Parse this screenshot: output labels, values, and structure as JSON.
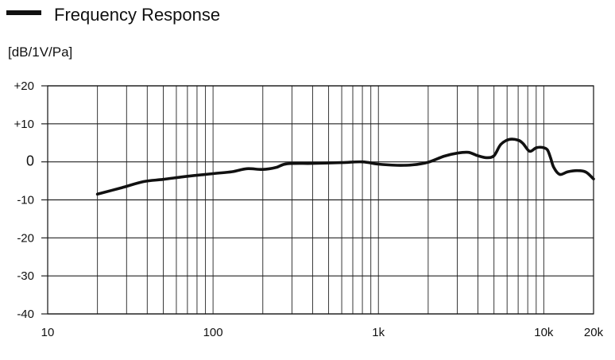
{
  "chart_data": {
    "type": "line",
    "title": "",
    "xlabel": "",
    "ylabel": "[dB/1V/Pa]",
    "x_scale": "log",
    "xlim": [
      10,
      20000
    ],
    "ylim": [
      -40,
      20
    ],
    "grid": true,
    "legend": "top-left",
    "x_ticks": [
      {
        "value": 10,
        "label": "10"
      },
      {
        "value": 100,
        "label": "100"
      },
      {
        "value": 1000,
        "label": "1k"
      },
      {
        "value": 10000,
        "label": "10k"
      },
      {
        "value": 20000,
        "label": "20k"
      }
    ],
    "y_ticks": [
      {
        "value": 20,
        "label": "+20"
      },
      {
        "value": 10,
        "label": "+10"
      },
      {
        "value": 0,
        "label": "0"
      },
      {
        "value": -10,
        "label": "-10"
      },
      {
        "value": -20,
        "label": "-20"
      },
      {
        "value": -30,
        "label": "-30"
      },
      {
        "value": -40,
        "label": "-40"
      }
    ],
    "series": [
      {
        "name": "Frequency Response",
        "color": "#111111",
        "points": [
          [
            20,
            -8.5
          ],
          [
            28,
            -6.8
          ],
          [
            38,
            -5.2
          ],
          [
            50,
            -4.6
          ],
          [
            70,
            -3.8
          ],
          [
            100,
            -3.1
          ],
          [
            130,
            -2.6
          ],
          [
            160,
            -1.8
          ],
          [
            200,
            -2.0
          ],
          [
            240,
            -1.5
          ],
          [
            280,
            -0.5
          ],
          [
            400,
            -0.4
          ],
          [
            600,
            -0.2
          ],
          [
            800,
            0.0
          ],
          [
            1000,
            -0.6
          ],
          [
            1300,
            -0.9
          ],
          [
            1600,
            -0.8
          ],
          [
            2000,
            -0.1
          ],
          [
            2500,
            1.5
          ],
          [
            3000,
            2.3
          ],
          [
            3500,
            2.5
          ],
          [
            4000,
            1.6
          ],
          [
            4500,
            1.1
          ],
          [
            5000,
            1.6
          ],
          [
            5500,
            4.6
          ],
          [
            6200,
            5.9
          ],
          [
            7000,
            5.7
          ],
          [
            7500,
            4.8
          ],
          [
            8200,
            2.8
          ],
          [
            9000,
            3.7
          ],
          [
            9800,
            3.8
          ],
          [
            10500,
            3.2
          ],
          [
            11000,
            1.0
          ],
          [
            11500,
            -1.5
          ],
          [
            12500,
            -3.3
          ],
          [
            14000,
            -2.6
          ],
          [
            16000,
            -2.3
          ],
          [
            18000,
            -2.7
          ],
          [
            20000,
            -4.5
          ]
        ]
      }
    ]
  }
}
